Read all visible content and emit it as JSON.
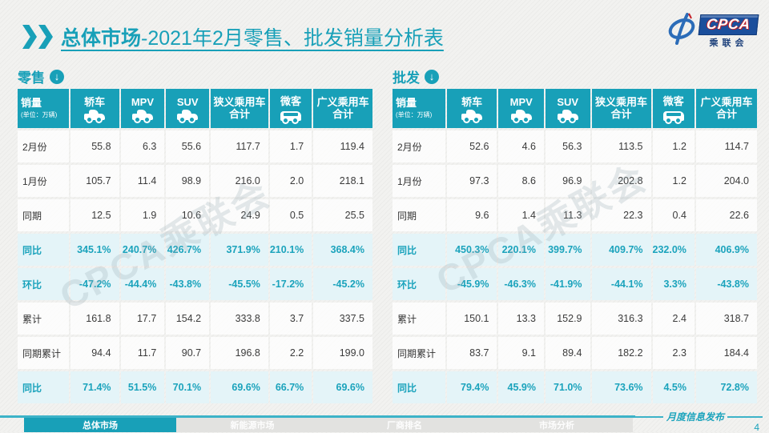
{
  "page": {
    "title_highlight": "总体市场",
    "title_rest": "-2021年2月零售、批发销量分析表"
  },
  "logo": {
    "acronym": "CPCA",
    "subtitle": "乘联会"
  },
  "icons": {
    "download_arrow": "↓"
  },
  "watermark": "CPCA乘联会",
  "colors": {
    "accent": "#18A0B8",
    "highlight_row_bg": "#E3F4F9",
    "logo_blue": "#1B4F9C"
  },
  "tables": [
    {
      "section_label": "零售",
      "corner": {
        "title": "销量",
        "unit": "(单位：万辆)"
      },
      "columns": [
        {
          "label": "轿车",
          "icon": "sedan-car"
        },
        {
          "label": "MPV",
          "icon": "mpv-car"
        },
        {
          "label": "SUV",
          "icon": "suv-car"
        },
        {
          "label": "狭义乘用车",
          "label2": "合计"
        },
        {
          "label": "微客",
          "icon": "microvan"
        },
        {
          "label": "广义乘用车",
          "label2": "合计"
        }
      ],
      "rows": [
        {
          "label": "2月份",
          "values": [
            "55.8",
            "6.3",
            "55.6",
            "117.7",
            "1.7",
            "119.4"
          ]
        },
        {
          "label": "1月份",
          "values": [
            "105.7",
            "11.4",
            "98.9",
            "216.0",
            "2.0",
            "218.1"
          ]
        },
        {
          "label": "同期",
          "values": [
            "12.5",
            "1.9",
            "10.6",
            "24.9",
            "0.5",
            "25.5"
          ]
        },
        {
          "label": "同比",
          "highlight": true,
          "values": [
            "345.1%",
            "240.7%",
            "426.7%",
            "371.9%",
            "210.1%",
            "368.4%"
          ]
        },
        {
          "label": "环比",
          "highlight": true,
          "values": [
            "-47.2%",
            "-44.4%",
            "-43.8%",
            "-45.5%",
            "-17.2%",
            "-45.2%"
          ]
        },
        {
          "label": "累计",
          "values": [
            "161.8",
            "17.7",
            "154.2",
            "333.8",
            "3.7",
            "337.5"
          ]
        },
        {
          "label": "同期累计",
          "values": [
            "94.4",
            "11.7",
            "90.7",
            "196.8",
            "2.2",
            "199.0"
          ]
        },
        {
          "label": "同比",
          "highlight": true,
          "values": [
            "71.4%",
            "51.5%",
            "70.1%",
            "69.6%",
            "66.7%",
            "69.6%"
          ]
        }
      ]
    },
    {
      "section_label": "批发",
      "corner": {
        "title": "销量",
        "unit": "(单位：万辆)"
      },
      "columns": [
        {
          "label": "轿车",
          "icon": "sedan-car"
        },
        {
          "label": "MPV",
          "icon": "mpv-car"
        },
        {
          "label": "SUV",
          "icon": "suv-car"
        },
        {
          "label": "狭义乘用车",
          "label2": "合计"
        },
        {
          "label": "微客",
          "icon": "microvan"
        },
        {
          "label": "广义乘用车",
          "label2": "合计"
        }
      ],
      "rows": [
        {
          "label": "2月份",
          "values": [
            "52.6",
            "4.6",
            "56.3",
            "113.5",
            "1.2",
            "114.7"
          ]
        },
        {
          "label": "1月份",
          "values": [
            "97.3",
            "8.6",
            "96.9",
            "202.8",
            "1.2",
            "204.0"
          ]
        },
        {
          "label": "同期",
          "values": [
            "9.6",
            "1.4",
            "11.3",
            "22.3",
            "0.4",
            "22.6"
          ]
        },
        {
          "label": "同比",
          "highlight": true,
          "values": [
            "450.3%",
            "220.1%",
            "399.7%",
            "409.7%",
            "232.0%",
            "406.9%"
          ]
        },
        {
          "label": "环比",
          "highlight": true,
          "values": [
            "-45.9%",
            "-46.3%",
            "-41.9%",
            "-44.1%",
            "3.3%",
            "-43.8%"
          ]
        },
        {
          "label": "累计",
          "values": [
            "150.1",
            "13.3",
            "152.9",
            "316.3",
            "2.4",
            "318.7"
          ]
        },
        {
          "label": "同期累计",
          "values": [
            "83.7",
            "9.1",
            "89.4",
            "182.2",
            "2.3",
            "184.4"
          ]
        },
        {
          "label": "同比",
          "highlight": true,
          "values": [
            "79.4%",
            "45.9%",
            "71.0%",
            "73.6%",
            "4.5%",
            "72.8%"
          ]
        }
      ]
    }
  ],
  "footer": {
    "tabs": [
      {
        "label": "总体市场",
        "active": true
      },
      {
        "label": "新能源市场",
        "active": false
      },
      {
        "label": "厂商排名",
        "active": false
      },
      {
        "label": "市场分析",
        "active": false
      }
    ],
    "publish_label": "月度信息发布",
    "page_number": "4"
  }
}
